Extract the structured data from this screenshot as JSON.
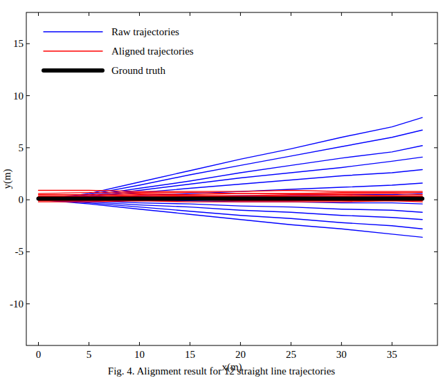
{
  "chart_data": {
    "type": "line",
    "caption": "Fig. 4.  Alignment result for 12 straight line trajectories",
    "x_label": "x(m)",
    "y_label": "y(m)",
    "x": [
      0,
      5,
      10,
      15,
      20,
      25,
      30,
      35,
      38
    ],
    "xlim": [
      -1.2,
      39.5
    ],
    "xticks": [
      0,
      5,
      10,
      15,
      20,
      25,
      30,
      35
    ],
    "ylim": [
      -14,
      18
    ],
    "yticks": [
      -10,
      -5,
      0,
      5,
      10,
      15
    ],
    "grid": false,
    "legend": "upper left",
    "series": [
      {
        "name": "Raw trajectories",
        "color": "#0000ff",
        "values": [
          0,
          0.6,
          1.7,
          2.8,
          3.9,
          4.9,
          6.0,
          7.0,
          7.9
        ]
      },
      {
        "name": "Raw trajectories",
        "color": "#0000ff",
        "values": [
          0,
          0.5,
          1.4,
          2.4,
          3.3,
          4.2,
          5.1,
          6.0,
          6.7
        ]
      },
      {
        "name": "Raw trajectories",
        "color": "#0000ff",
        "values": [
          0,
          0.4,
          1.1,
          1.8,
          2.6,
          3.3,
          4.0,
          4.6,
          5.2
        ]
      },
      {
        "name": "Raw trajectories",
        "color": "#0000ff",
        "values": [
          0,
          0.3,
          0.9,
          1.5,
          2.1,
          2.6,
          3.1,
          3.7,
          4.1
        ]
      },
      {
        "name": "Raw trajectories",
        "color": "#0000ff",
        "values": [
          0,
          0.3,
          0.7,
          1.1,
          1.5,
          1.9,
          2.3,
          2.6,
          2.9
        ]
      },
      {
        "name": "Raw trajectories",
        "color": "#0000ff",
        "values": [
          0,
          0.2,
          0.4,
          0.6,
          0.8,
          1.0,
          1.2,
          1.4,
          1.6
        ]
      },
      {
        "name": "Raw trajectories",
        "color": "#0000ff",
        "values": [
          0,
          0.1,
          0.2,
          0.3,
          0.4,
          0.4,
          0.5,
          0.5,
          0.6
        ]
      },
      {
        "name": "Raw trajectories",
        "color": "#0000ff",
        "values": [
          0,
          0,
          -0.1,
          -0.1,
          -0.2,
          -0.2,
          -0.3,
          -0.3,
          -0.4
        ]
      },
      {
        "name": "Raw trajectories",
        "color": "#0000ff",
        "values": [
          0,
          -0.1,
          -0.3,
          -0.4,
          -0.6,
          -0.7,
          -0.9,
          -1.0,
          -1.2
        ]
      },
      {
        "name": "Raw trajectories",
        "color": "#0000ff",
        "values": [
          0,
          -0.2,
          -0.5,
          -0.7,
          -1.0,
          -1.2,
          -1.5,
          -1.7,
          -1.9
        ]
      },
      {
        "name": "Raw trajectories",
        "color": "#0000ff",
        "values": [
          0,
          -0.3,
          -0.7,
          -1.1,
          -1.5,
          -1.8,
          -2.2,
          -2.5,
          -2.8
        ]
      },
      {
        "name": "Raw trajectories",
        "color": "#0000ff",
        "values": [
          0,
          -0.4,
          -0.9,
          -1.4,
          -1.9,
          -2.4,
          -2.8,
          -3.3,
          -3.6
        ]
      },
      {
        "name": "Aligned trajectories",
        "color": "#ff0000",
        "values": [
          0.9,
          0.9,
          0.8,
          0.8,
          0.8,
          0.9,
          0.8,
          0.8,
          0.8
        ]
      },
      {
        "name": "Aligned trajectories",
        "color": "#ff0000",
        "values": [
          0.6,
          0.7,
          0.7,
          0.7,
          0.6,
          0.6,
          0.7,
          0.7,
          0.7
        ]
      },
      {
        "name": "Aligned trajectories",
        "color": "#ff0000",
        "values": [
          0.5,
          0.5,
          0.6,
          0.5,
          0.6,
          0.6,
          0.6,
          0.6,
          0.5
        ]
      },
      {
        "name": "Aligned trajectories",
        "color": "#ff0000",
        "values": [
          0.4,
          0.4,
          0.5,
          0.4,
          0.4,
          0.5,
          0.5,
          0.4,
          0.4
        ]
      },
      {
        "name": "Aligned trajectories",
        "color": "#ff0000",
        "values": [
          0.3,
          0.3,
          0.4,
          0.4,
          0.3,
          0.4,
          0.4,
          0.4,
          0.3
        ]
      },
      {
        "name": "Aligned trajectories",
        "color": "#ff0000",
        "values": [
          0.3,
          0.3,
          0.3,
          0.3,
          0.3,
          0.3,
          0.3,
          0.3,
          0.3
        ]
      },
      {
        "name": "Aligned trajectories",
        "color": "#ff0000",
        "values": [
          0.2,
          0.2,
          0.2,
          0.3,
          0.2,
          0.2,
          0.2,
          0.2,
          0.2
        ]
      },
      {
        "name": "Aligned trajectories",
        "color": "#ff0000",
        "values": [
          0.1,
          0.2,
          0.2,
          0.2,
          0.2,
          0.1,
          0.2,
          0.2,
          0.2
        ]
      },
      {
        "name": "Aligned trajectories",
        "color": "#ff0000",
        "values": [
          0.1,
          0.1,
          0.1,
          0.1,
          0.1,
          0.1,
          0.1,
          0.1,
          0.1
        ]
      },
      {
        "name": "Aligned trajectories",
        "color": "#ff0000",
        "values": [
          0.0,
          0.0,
          0.1,
          0.0,
          0.0,
          0.0,
          0.0,
          0.0,
          0.0
        ]
      },
      {
        "name": "Aligned trajectories",
        "color": "#ff0000",
        "values": [
          -0.1,
          -0.1,
          -0.1,
          0.0,
          -0.1,
          -0.1,
          -0.1,
          -0.1,
          -0.1
        ]
      },
      {
        "name": "Aligned trajectories",
        "color": "#ff0000",
        "values": [
          -0.2,
          -0.2,
          -0.1,
          -0.2,
          -0.2,
          -0.2,
          -0.2,
          -0.1,
          -0.2
        ]
      },
      {
        "name": "Ground truth",
        "color": "#000000",
        "values": [
          0.1,
          0.1,
          0.1,
          0.1,
          0.1,
          0.1,
          0.1,
          0.1,
          0.1
        ]
      }
    ]
  }
}
